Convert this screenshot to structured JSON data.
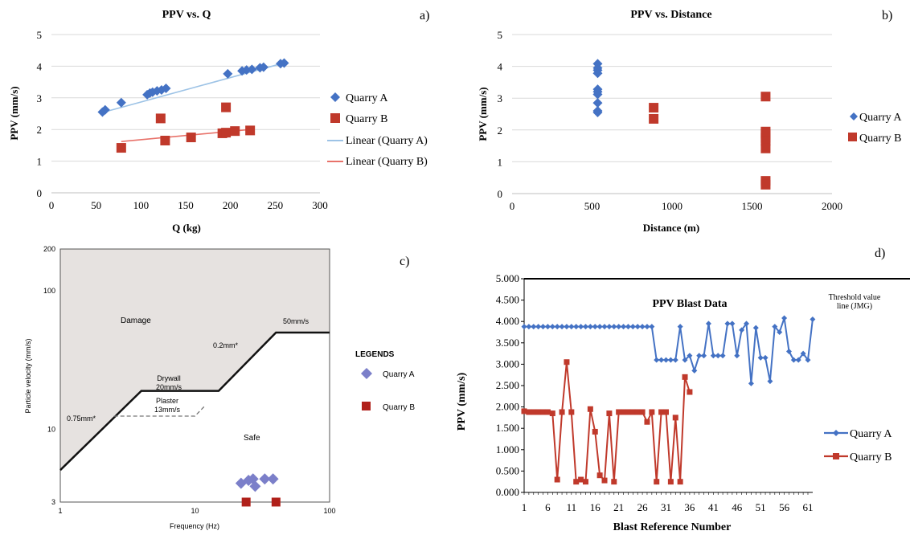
{
  "colors": {
    "quarry_a": "#4472c4",
    "quarry_b": "#c0392b",
    "lin_a": "#9dc3e6",
    "lin_b": "#e8726a",
    "damage_fill": "#e6e2e0",
    "line": "#000000",
    "grid": "#d9d9d9"
  },
  "chart_data": [
    {
      "panel": "a",
      "panel_label": "a)",
      "type": "scatter",
      "title": "PPV vs. Q",
      "xlabel": "Q (kg)",
      "ylabel": "PPV (mm/s)",
      "xlim": [
        0,
        300
      ],
      "ylim": [
        0,
        5
      ],
      "xticks": [
        "0",
        "50",
        "100",
        "150",
        "200",
        "250",
        "300"
      ],
      "yticks": [
        "0",
        "1",
        "2",
        "3",
        "4",
        "5"
      ],
      "grid": "horizontal",
      "legend": "right",
      "legend_entries": [
        "Quarry A",
        "Quarry B",
        "Linear (Quarry A)",
        "Linear (Quarry B)"
      ],
      "series": [
        {
          "name": "Quarry A",
          "marker": "diamond",
          "points": [
            [
              57,
              2.55
            ],
            [
              60,
              2.62
            ],
            [
              78,
              2.85
            ],
            [
              107,
              3.1
            ],
            [
              110,
              3.15
            ],
            [
              113,
              3.18
            ],
            [
              118,
              3.22
            ],
            [
              123,
              3.25
            ],
            [
              128,
              3.3
            ],
            [
              197,
              3.76
            ],
            [
              213,
              3.85
            ],
            [
              218,
              3.88
            ],
            [
              224,
              3.9
            ],
            [
              233,
              3.95
            ],
            [
              237,
              3.97
            ],
            [
              256,
              4.08
            ],
            [
              260,
              4.1
            ]
          ]
        },
        {
          "name": "Quarry B",
          "marker": "square",
          "points": [
            [
              78,
              1.42
            ],
            [
              122,
              2.35
            ],
            [
              127,
              1.65
            ],
            [
              156,
              1.75
            ],
            [
              191,
              1.88
            ],
            [
              195,
              2.7
            ],
            [
              195,
              1.9
            ],
            [
              205,
              1.95
            ],
            [
              222,
              1.97
            ]
          ]
        }
      ],
      "trendlines": [
        {
          "name": "Linear (Quarry A)",
          "from": [
            55,
            2.52
          ],
          "to": [
            262,
            4.12
          ]
        },
        {
          "name": "Linear (Quarry B)",
          "from": [
            78,
            1.62
          ],
          "to": [
            222,
            2.0
          ]
        }
      ]
    },
    {
      "panel": "b",
      "panel_label": "b)",
      "type": "scatter",
      "title": "PPV vs. Distance",
      "xlabel": "Distance (m)",
      "ylabel": "PPV (mm/s)",
      "xlim": [
        0,
        2000
      ],
      "ylim": [
        0,
        5
      ],
      "xticks": [
        "0",
        "500",
        "1000",
        "1500",
        "2000"
      ],
      "yticks": [
        "0",
        "1",
        "2",
        "3",
        "4",
        "5"
      ],
      "grid": "horizontal",
      "legend": "right",
      "legend_entries": [
        "Quarry A",
        "Quarry B"
      ],
      "series": [
        {
          "name": "Quarry A",
          "marker": "diamond",
          "points": [
            [
              535,
              4.08
            ],
            [
              535,
              3.95
            ],
            [
              535,
              3.88
            ],
            [
              535,
              3.78
            ],
            [
              535,
              3.28
            ],
            [
              535,
              3.2
            ],
            [
              535,
              3.12
            ],
            [
              535,
              2.85
            ],
            [
              535,
              2.6
            ],
            [
              535,
              2.55
            ]
          ]
        },
        {
          "name": "Quarry B",
          "marker": "square",
          "points": [
            [
              885,
              2.7
            ],
            [
              885,
              2.35
            ],
            [
              1585,
              3.05
            ],
            [
              1585,
              1.95
            ],
            [
              1585,
              1.88
            ],
            [
              1585,
              1.75
            ],
            [
              1585,
              1.65
            ],
            [
              1585,
              1.42
            ],
            [
              1585,
              0.4
            ],
            [
              1585,
              0.28
            ]
          ]
        }
      ]
    },
    {
      "panel": "c",
      "panel_label": "c)",
      "type": "scatter",
      "xlabel": "Frequency (Hz)",
      "ylabel": "Particle velocity (mm/s)",
      "xscale": "log",
      "yscale": "log",
      "xlim": [
        1,
        100
      ],
      "ylim": [
        3,
        200
      ],
      "xticks": [
        "1",
        "10",
        "100"
      ],
      "yticks": [
        "3",
        "10",
        "100",
        "200"
      ],
      "zones": {
        "damage": "Damage",
        "safe": "Safe"
      },
      "annotations": {
        "slope_075": "0.75mm*",
        "slope_02": "0.2mm*",
        "drywall_1": "Drywall",
        "drywall_2": "20mm/s",
        "plaster_1": "Plaster",
        "plaster_2": "13mm/s",
        "limit_50": "50mm/s"
      },
      "legend_title": "LEGENDS",
      "legend_entries": [
        "Quarry A",
        "Quarry B"
      ],
      "series": [
        {
          "name": "Quarry A",
          "marker": "diamond",
          "points": [
            [
              22,
              4.1
            ],
            [
              25,
              4.3
            ],
            [
              27,
              4.4
            ],
            [
              28,
              3.9
            ],
            [
              33,
              4.4
            ],
            [
              38,
              4.4
            ]
          ]
        },
        {
          "name": "Quarry B",
          "marker": "square",
          "points": [
            [
              24,
              3.0
            ],
            [
              40,
              3.0
            ]
          ]
        }
      ]
    },
    {
      "panel": "d",
      "panel_label": "d)",
      "type": "line",
      "title": "PPV Blast Data",
      "xlabel": "Blast Reference Number",
      "ylabel": "PPV (mm/s)",
      "threshold_label_1": "Threshold value",
      "threshold_label_2": "line (JMG)",
      "threshold": 5.0,
      "ylim": [
        0,
        5
      ],
      "yticks": [
        "0.000",
        "0.500",
        "1.000",
        "1.500",
        "2.000",
        "2.500",
        "3.000",
        "3.500",
        "4.000",
        "4.500",
        "5.000"
      ],
      "xticks": [
        "1",
        "6",
        "11",
        "16",
        "21",
        "26",
        "31",
        "36",
        "41",
        "46",
        "51",
        "56",
        "61"
      ],
      "grid": "none",
      "legend": "right",
      "series": [
        {
          "name": "Quarry A",
          "marker": "diamond",
          "values": [
            3.88,
            3.88,
            3.88,
            3.88,
            3.88,
            3.88,
            3.88,
            3.88,
            3.88,
            3.88,
            3.88,
            3.88,
            3.88,
            3.88,
            3.88,
            3.88,
            3.88,
            3.88,
            3.88,
            3.88,
            3.88,
            3.88,
            3.88,
            3.88,
            3.88,
            3.88,
            3.88,
            3.88,
            3.1,
            3.1,
            3.1,
            3.1,
            3.1,
            3.88,
            3.1,
            3.2,
            2.85,
            3.2,
            3.2,
            3.95,
            3.2,
            3.2,
            3.2,
            3.95,
            3.95,
            3.2,
            3.8,
            3.95,
            2.55,
            3.85,
            3.15,
            3.15,
            2.6,
            3.88,
            3.75,
            4.08,
            3.3,
            3.1,
            3.1,
            3.25,
            3.1,
            4.05
          ]
        },
        {
          "name": "Quarry B",
          "marker": "square",
          "values": [
            1.9,
            1.88,
            1.88,
            1.88,
            1.88,
            1.88,
            1.85,
            0.3,
            1.88,
            3.05,
            1.88,
            0.25,
            0.3,
            0.25,
            1.95,
            1.42,
            0.4,
            0.28,
            1.85,
            0.25,
            1.88,
            1.88,
            1.88,
            1.88,
            1.88,
            1.88,
            1.65,
            1.88,
            0.25,
            1.88,
            1.88,
            0.25,
            1.75,
            0.25,
            2.7,
            2.35
          ]
        }
      ]
    }
  ]
}
